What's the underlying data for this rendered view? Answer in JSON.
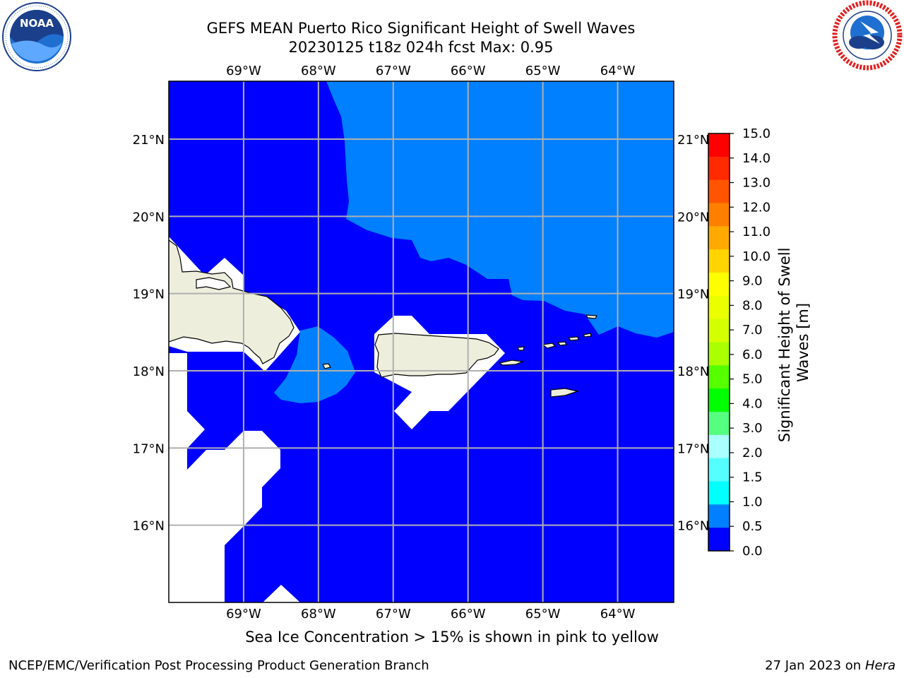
{
  "header": {
    "title_line1": "GEFS MEAN Puerto Rico Significant Height of Swell Waves",
    "title_line2": "20230125 t18z 024h fcst   Max: 0.95"
  },
  "logos": {
    "left": {
      "icon": "noaa-logo-icon",
      "text": "NOAA",
      "ring_text": "NATIONAL OCEANIC AND ATMOSPHERIC ADMINISTRATION · U.S. DEPARTMENT OF COMMERCE"
    },
    "right": {
      "icon": "nws-logo-icon",
      "ring_text": "NATIONAL WEATHER SERVICE"
    }
  },
  "map": {
    "lon_labels": [
      "69°W",
      "68°W",
      "67°W",
      "66°W",
      "65°W",
      "64°W"
    ],
    "lat_labels": [
      "21°N",
      "20°N",
      "19°N",
      "18°N",
      "17°N",
      "16°N"
    ],
    "lon_values": [
      -69,
      -68,
      -67,
      -66,
      -65,
      -64
    ],
    "lat_values": [
      21,
      20,
      19,
      18,
      17,
      16
    ],
    "lon_range": [
      -70,
      -63.25
    ],
    "lat_range": [
      15,
      21.75
    ],
    "grid": true,
    "colors": {
      "ocean_low": "#0000FF",
      "ocean_mid": "#0080FF",
      "land": "#EEEEDD",
      "no_data": "#FFFFFF",
      "grid": "#B0B0B0"
    }
  },
  "colorbar": {
    "ticks": [
      "15.0",
      "14.0",
      "13.0",
      "12.0",
      "11.0",
      "10.0",
      "9.0",
      "8.0",
      "7.0",
      "6.0",
      "5.0",
      "4.0",
      "3.0",
      "2.0",
      "1.5",
      "1.0",
      "0.5",
      "0.0"
    ],
    "colors_top_to_bottom": [
      "#FF0000",
      "#FF2A00",
      "#FF5500",
      "#FF8000",
      "#FFAA00",
      "#FFD400",
      "#FFFF00",
      "#EAFF00",
      "#D4FF00",
      "#AAFF00",
      "#55FF00",
      "#00FF00",
      "#55FF80",
      "#AAFFFF",
      "#55FFFF",
      "#00FFFF",
      "#0080FF",
      "#0000FF"
    ],
    "label_line1": "Significant Height of Swell",
    "label_line2": "Waves [m]"
  },
  "note": "Sea Ice Concentration > 15% is shown in pink to yellow",
  "footer": {
    "left": "NCEP/EMC/Verification Post Processing Product Generation Branch",
    "date": "27 Jan 2023 on ",
    "host": "Hera"
  }
}
